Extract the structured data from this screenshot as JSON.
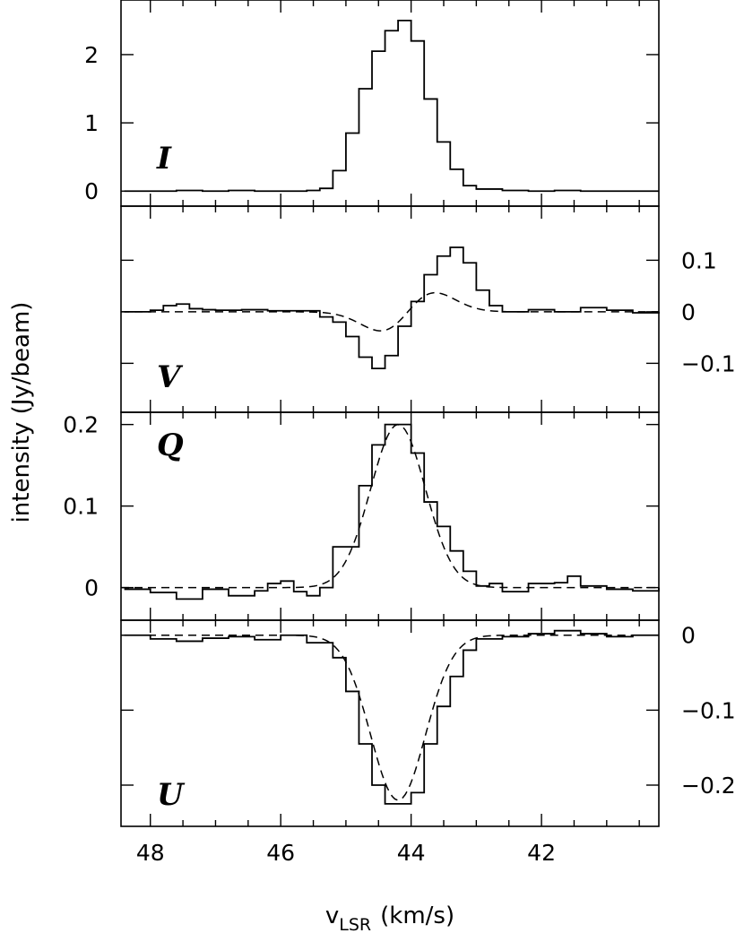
{
  "chart_data": {
    "type": "line",
    "xlabel_main": "v",
    "xlabel_sub": "LSR",
    "xlabel_unit": "(km/s)",
    "ylabel": "intensity (Jy/beam)",
    "xlim": [
      48.45,
      40.2
    ],
    "x_ticks": [
      {
        "value": 48,
        "label": "48"
      },
      {
        "value": 46,
        "label": "46"
      },
      {
        "value": 44,
        "label": "44"
      },
      {
        "value": 42,
        "label": "42"
      }
    ],
    "panels": [
      {
        "label": "I",
        "ylim": [
          -0.22,
          2.8
        ],
        "label_side": "left",
        "yticks": [
          {
            "value": 0,
            "label": "0"
          },
          {
            "value": 1,
            "label": "1"
          },
          {
            "value": 2,
            "label": "2"
          }
        ],
        "data": {
          "x": [
            48.4,
            48.0,
            47.6,
            47.2,
            46.8,
            46.4,
            46.0,
            45.6,
            45.4,
            45.2,
            45.0,
            44.8,
            44.6,
            44.4,
            44.2,
            44.0,
            43.8,
            43.6,
            43.4,
            43.2,
            43.0,
            42.6,
            42.2,
            41.8,
            41.4,
            41.0,
            40.6,
            40.2
          ],
          "y": [
            0.0,
            0.0,
            0.01,
            0.0,
            0.01,
            0.0,
            0.0,
            0.01,
            0.04,
            0.3,
            0.85,
            1.5,
            2.05,
            2.35,
            2.5,
            2.2,
            1.35,
            0.72,
            0.32,
            0.08,
            0.03,
            0.01,
            0.0,
            0.01,
            0.0,
            0.0,
            0.0,
            0.0
          ]
        },
        "fit": null
      },
      {
        "label": "V",
        "ylim": [
          -0.195,
          0.205
        ],
        "label_side": "right",
        "yticks": [
          {
            "value": 0.1,
            "label": "0.1"
          },
          {
            "value": 0,
            "label": "0"
          },
          {
            "value": -0.1,
            "label": "−0.1"
          }
        ],
        "data": {
          "x": [
            48.4,
            48.0,
            47.8,
            47.6,
            47.4,
            47.2,
            47.0,
            46.6,
            46.2,
            45.8,
            45.4,
            45.2,
            45.0,
            44.8,
            44.6,
            44.4,
            44.2,
            44.0,
            43.8,
            43.6,
            43.4,
            43.2,
            43.0,
            42.8,
            42.6,
            42.2,
            41.8,
            41.4,
            41.0,
            40.6,
            40.2
          ],
          "y": [
            0.0,
            0.003,
            0.012,
            0.015,
            0.006,
            0.004,
            0.003,
            0.004,
            0.002,
            0.002,
            -0.01,
            -0.02,
            -0.048,
            -0.088,
            -0.11,
            -0.085,
            -0.028,
            0.02,
            0.072,
            0.108,
            0.125,
            0.095,
            0.042,
            0.012,
            0.0,
            0.004,
            0.0,
            0.008,
            0.003,
            -0.002,
            0.0
          ]
        },
        "fit": "v"
      },
      {
        "label": "Q",
        "ylim": [
          -0.04,
          0.215
        ],
        "label_side": "left",
        "yticks": [
          {
            "value": 0,
            "label": "0"
          },
          {
            "value": 0.1,
            "label": "0.1"
          },
          {
            "value": 0.2,
            "label": "0.2"
          }
        ],
        "data": {
          "x": [
            48.4,
            48.0,
            47.6,
            47.2,
            46.8,
            46.4,
            46.2,
            46.0,
            45.8,
            45.6,
            45.4,
            45.2,
            45.0,
            44.8,
            44.6,
            44.4,
            44.2,
            44.0,
            43.8,
            43.6,
            43.4,
            43.2,
            43.0,
            42.8,
            42.6,
            42.2,
            41.8,
            41.6,
            41.4,
            41.0,
            40.6,
            40.2
          ],
          "y": [
            -0.002,
            -0.006,
            -0.014,
            -0.002,
            -0.01,
            -0.004,
            0.005,
            0.008,
            -0.005,
            -0.01,
            0.0,
            0.05,
            0.05,
            0.125,
            0.175,
            0.2,
            0.2,
            0.165,
            0.105,
            0.075,
            0.045,
            0.02,
            0.002,
            0.005,
            -0.005,
            0.005,
            0.006,
            0.014,
            0.002,
            -0.002,
            -0.004,
            0.0
          ]
        },
        "fit": "q"
      },
      {
        "label": "U",
        "ylim": [
          -0.255,
          0.02
        ],
        "label_side": "right",
        "yticks": [
          {
            "value": 0,
            "label": "0"
          },
          {
            "value": -0.1,
            "label": "−0.1"
          },
          {
            "value": -0.2,
            "label": "−0.2"
          }
        ],
        "data": {
          "x": [
            48.4,
            48.0,
            47.6,
            47.2,
            46.8,
            46.4,
            46.0,
            45.6,
            45.2,
            45.0,
            44.8,
            44.6,
            44.4,
            44.2,
            44.0,
            43.8,
            43.6,
            43.4,
            43.2,
            43.0,
            42.6,
            42.2,
            41.8,
            41.4,
            41.0,
            40.6,
            40.2
          ],
          "y": [
            0.0,
            -0.005,
            -0.008,
            -0.004,
            -0.002,
            -0.006,
            0.0,
            -0.01,
            -0.03,
            -0.075,
            -0.145,
            -0.2,
            -0.225,
            -0.225,
            -0.21,
            -0.145,
            -0.095,
            -0.055,
            -0.02,
            -0.005,
            -0.002,
            0.002,
            0.006,
            0.002,
            -0.002,
            0.0,
            0.0
          ]
        },
        "fit": "u"
      }
    ]
  }
}
